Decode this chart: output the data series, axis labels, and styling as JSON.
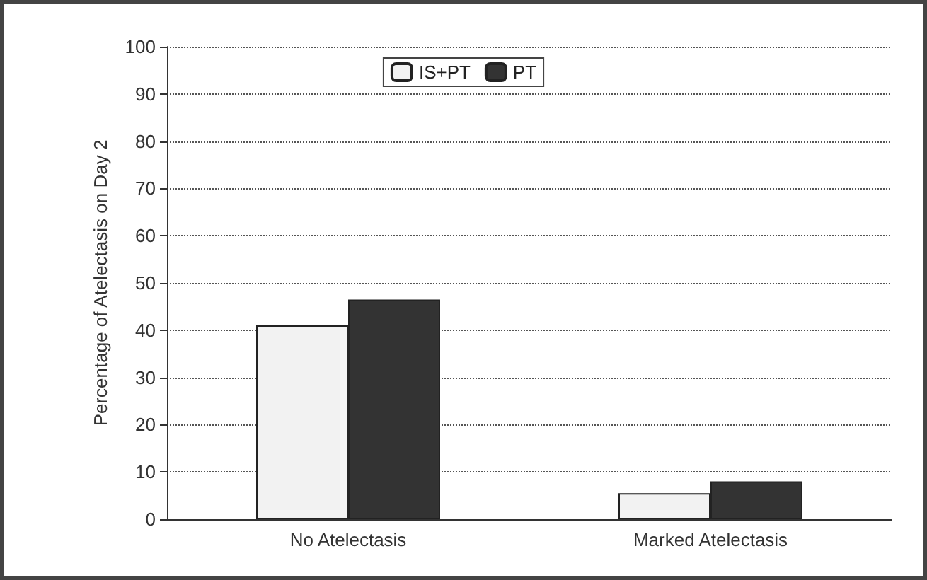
{
  "chart_data": {
    "type": "bar",
    "ylabel": "Percentage of Atelectasis on Day 2",
    "categories": [
      "No Atelectasis",
      "Marked Atelectasis"
    ],
    "series": [
      {
        "name": "IS+PT",
        "color": "#f2f2f2",
        "values": [
          41,
          5.5
        ]
      },
      {
        "name": "PT",
        "color": "#333333",
        "values": [
          46.5,
          8
        ]
      }
    ],
    "ylim": [
      0,
      100
    ],
    "yticks": [
      0,
      10,
      20,
      30,
      40,
      50,
      60,
      70,
      80,
      90,
      100
    ],
    "grid": "y",
    "legend": "top"
  }
}
